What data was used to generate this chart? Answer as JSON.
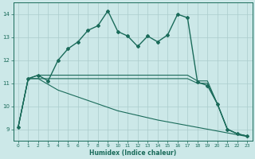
{
  "xlabel": "Humidex (Indice chaleur)",
  "ylabel": "",
  "xlim": [
    -0.5,
    23.5
  ],
  "ylim": [
    8.5,
    14.5
  ],
  "yticks": [
    9,
    10,
    11,
    12,
    13,
    14
  ],
  "xticks": [
    0,
    1,
    2,
    3,
    4,
    5,
    6,
    7,
    8,
    9,
    10,
    11,
    12,
    13,
    14,
    15,
    16,
    17,
    18,
    19,
    20,
    21,
    22,
    23
  ],
  "bg_color": "#cce8e8",
  "grid_color": "#aacccc",
  "line_color": "#1a6b5a",
  "lines": [
    {
      "x": [
        0,
        1,
        2,
        3,
        4,
        5,
        6,
        7,
        8,
        9,
        10,
        11,
        12,
        13,
        14,
        15,
        16,
        17,
        18,
        19,
        20,
        21,
        22,
        23
      ],
      "y": [
        9.1,
        11.2,
        11.35,
        11.1,
        12.0,
        12.5,
        12.8,
        13.3,
        13.5,
        14.15,
        13.25,
        13.05,
        12.6,
        13.05,
        12.8,
        13.1,
        14.0,
        13.85,
        11.05,
        10.9,
        10.1,
        9.0,
        8.8,
        8.7
      ],
      "style": "-",
      "marker": "D",
      "markersize": 2.0,
      "linewidth": 1.0
    },
    {
      "x": [
        0,
        1,
        2,
        3,
        4,
        5,
        6,
        7,
        8,
        9,
        10,
        11,
        12,
        13,
        14,
        15,
        16,
        17,
        18,
        19,
        20,
        21,
        22,
        23
      ],
      "y": [
        9.1,
        11.2,
        11.35,
        11.35,
        11.35,
        11.35,
        11.35,
        11.35,
        11.35,
        11.35,
        11.35,
        11.35,
        11.35,
        11.35,
        11.35,
        11.35,
        11.35,
        11.35,
        11.1,
        11.1,
        10.1,
        9.0,
        8.8,
        8.7
      ],
      "style": "-",
      "marker": null,
      "markersize": 0,
      "linewidth": 0.8
    },
    {
      "x": [
        0,
        1,
        2,
        3,
        4,
        5,
        6,
        7,
        8,
        9,
        10,
        11,
        12,
        13,
        14,
        15,
        16,
        17,
        18,
        19,
        20,
        21,
        22,
        23
      ],
      "y": [
        9.1,
        11.2,
        11.2,
        11.2,
        11.2,
        11.2,
        11.2,
        11.2,
        11.2,
        11.2,
        11.2,
        11.2,
        11.2,
        11.2,
        11.2,
        11.2,
        11.2,
        11.2,
        11.0,
        11.0,
        10.1,
        9.0,
        8.8,
        8.7
      ],
      "style": "-",
      "marker": null,
      "markersize": 0,
      "linewidth": 0.8
    },
    {
      "x": [
        0,
        1,
        2,
        3,
        4,
        5,
        6,
        7,
        8,
        9,
        10,
        11,
        12,
        13,
        14,
        15,
        16,
        17,
        18,
        19,
        20,
        21,
        22,
        23
      ],
      "y": [
        9.1,
        11.2,
        11.2,
        10.95,
        10.7,
        10.55,
        10.4,
        10.25,
        10.1,
        9.95,
        9.8,
        9.7,
        9.6,
        9.5,
        9.4,
        9.32,
        9.24,
        9.16,
        9.08,
        9.0,
        8.92,
        8.84,
        8.76,
        8.68
      ],
      "style": "-",
      "marker": null,
      "markersize": 0,
      "linewidth": 0.8
    }
  ]
}
